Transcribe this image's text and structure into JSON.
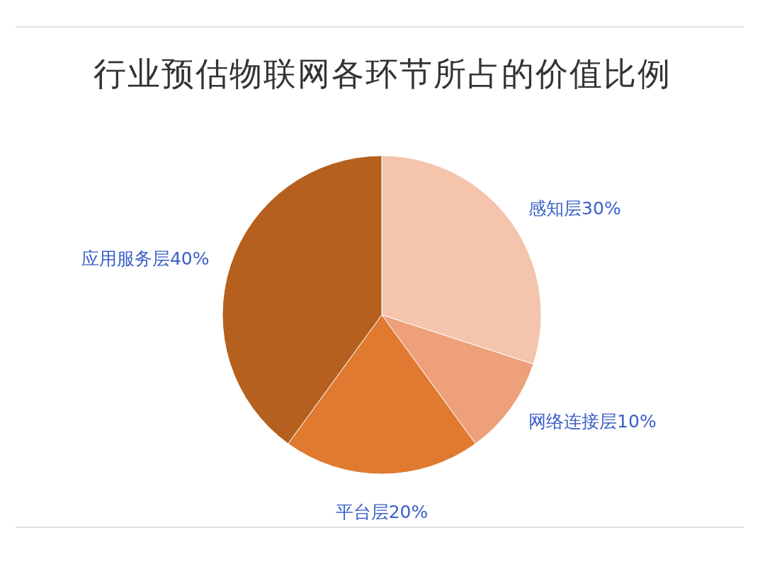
{
  "chart_data": {
    "type": "pie",
    "title": "行业预估物联网各环节所占的价值比例",
    "categories": [
      "感知层",
      "网络连接层",
      "平台层",
      "应用服务层"
    ],
    "values": [
      30,
      10,
      20,
      40
    ],
    "value_labels": [
      "30%",
      "10%",
      "20%",
      "40%"
    ],
    "colors": [
      "#f4c4ac",
      "#eda07a",
      "#e07a30",
      "#b5601e"
    ]
  }
}
